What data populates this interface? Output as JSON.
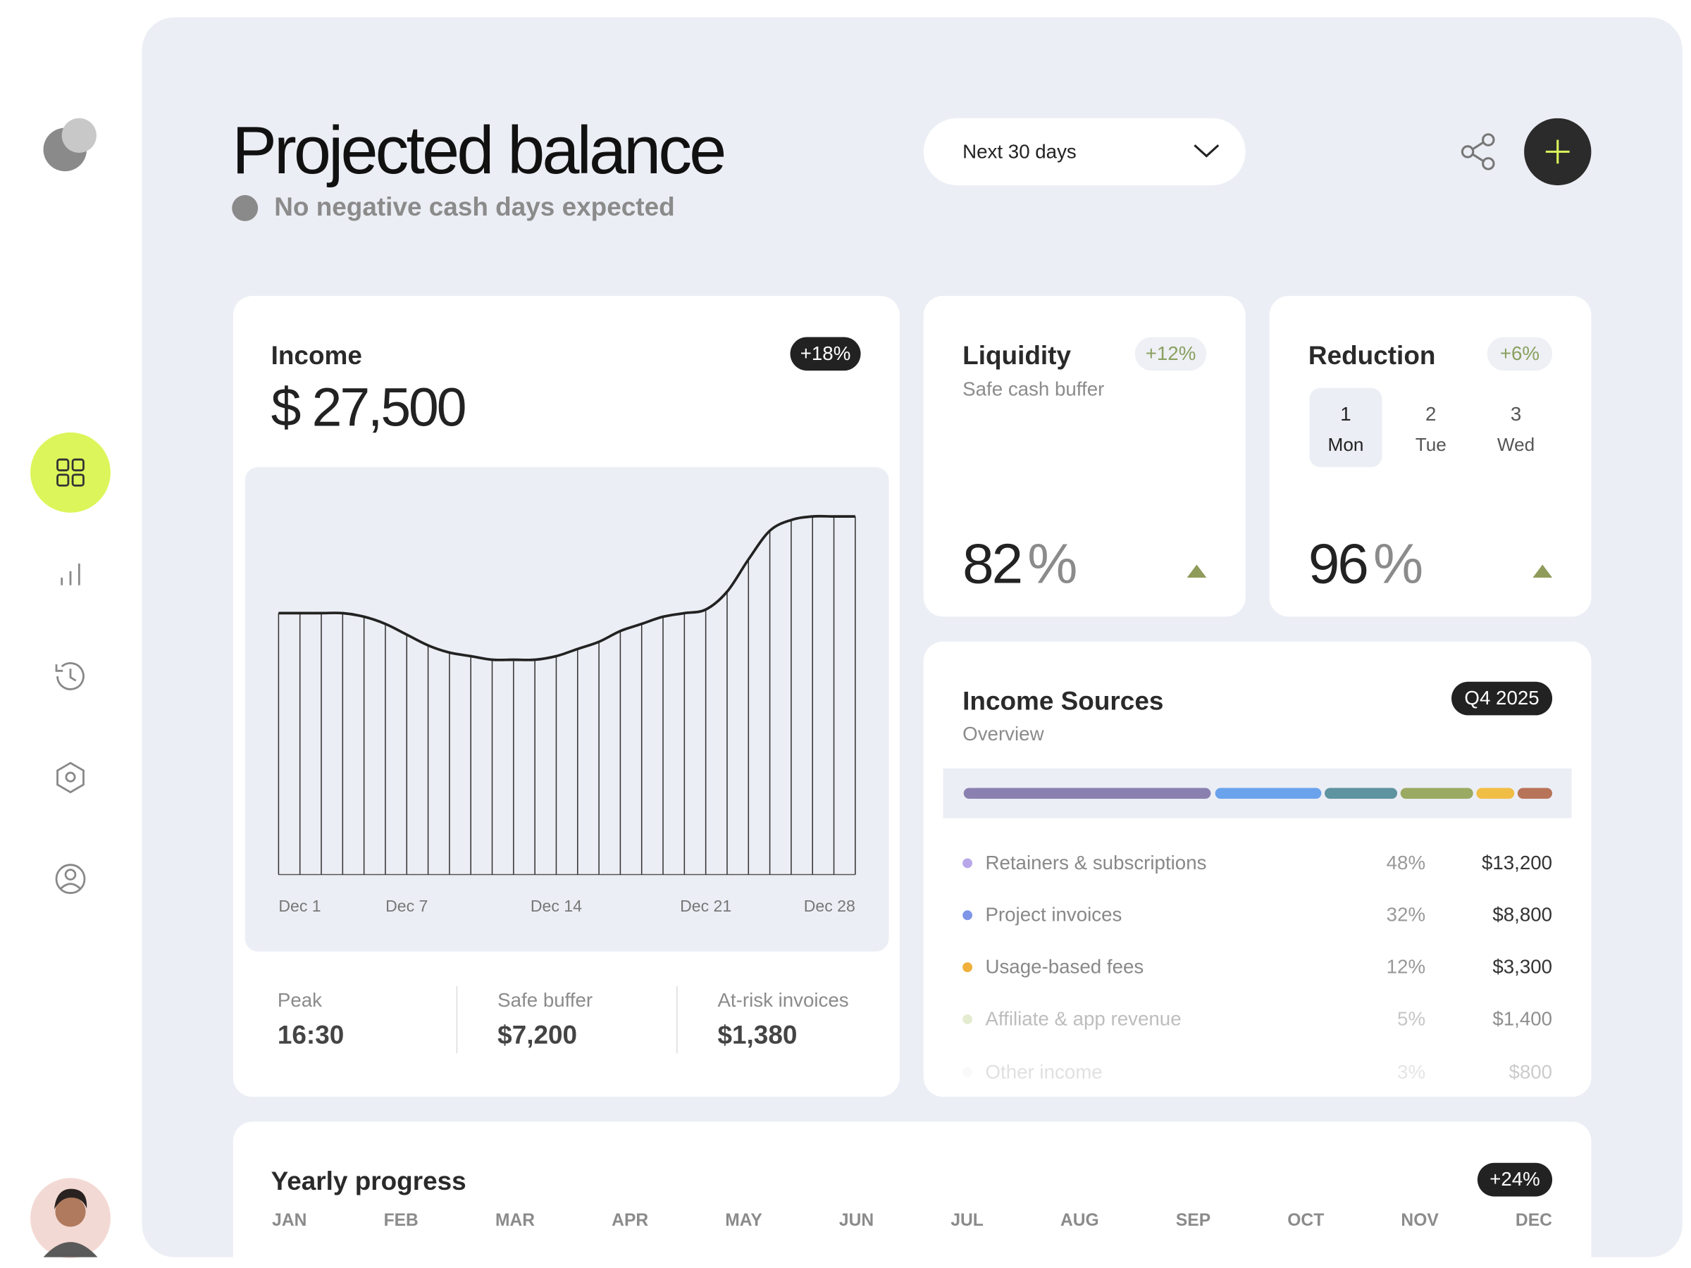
{
  "header": {
    "title": "Projected balance",
    "status": "No negative cash days expected",
    "period": "Next 30 days"
  },
  "income": {
    "title": "Income",
    "change": "+18%",
    "amount": "$ 27,500",
    "chart": {
      "type": "line",
      "categories": [
        "Dec 1",
        null,
        null,
        null,
        null,
        null,
        "Dec 7",
        null,
        null,
        null,
        null,
        null,
        null,
        "Dec 14",
        null,
        null,
        null,
        null,
        null,
        null,
        "Dec 21",
        null,
        null,
        null,
        null,
        null,
        null,
        "Dec 28"
      ],
      "values": [
        73,
        73,
        73,
        73,
        72,
        70,
        67,
        64,
        62,
        61,
        60,
        60,
        60,
        61,
        63,
        65,
        68,
        70,
        72,
        73,
        74,
        79,
        88,
        96,
        99,
        100,
        100,
        100
      ],
      "ylim": [
        0,
        105
      ],
      "color": "#222222"
    },
    "stats": [
      {
        "label": "Peak",
        "value": "16:30"
      },
      {
        "label": "Safe buffer",
        "value": "$7,200"
      },
      {
        "label": "At-risk invoices",
        "value": "$1,380"
      }
    ]
  },
  "liquidity": {
    "title": "Liquidity",
    "change": "+12%",
    "subtitle": "Safe cash buffer",
    "value": 82,
    "unit": "%"
  },
  "reduction": {
    "title": "Reduction",
    "change": "+6%",
    "days": [
      {
        "num": "1",
        "name": "Mon"
      },
      {
        "num": "2",
        "name": "Tue"
      },
      {
        "num": "3",
        "name": "Wed"
      }
    ],
    "value": 96,
    "unit": "%"
  },
  "sources": {
    "title": "Income Sources",
    "subtitle": "Overview",
    "period": "Q4 2025",
    "rows": [
      {
        "name": "Retainers & subscriptions",
        "share": "48%",
        "amount": "$13,200",
        "color": "#b9a7ea"
      },
      {
        "name": "Project invoices",
        "share": "32%",
        "amount": "$8,800",
        "color": "#7f95e6"
      },
      {
        "name": "Usage-based fees",
        "share": "12%",
        "amount": "$3,300",
        "color": "#f0b03a"
      },
      {
        "name": "Affiliate & app revenue",
        "share": "5%",
        "amount": "$1,400",
        "color": "#cfdcaa"
      },
      {
        "name": "Other income",
        "share": "3%",
        "amount": "$800",
        "color": "#e3e5f0"
      }
    ]
  },
  "yearly": {
    "title": "Yearly progress",
    "change": "+24%",
    "months": [
      "JAN",
      "FEB",
      "MAR",
      "APR",
      "MAY",
      "JUN",
      "JUL",
      "AUG",
      "SEP",
      "OCT",
      "NOV",
      "DEC"
    ]
  }
}
